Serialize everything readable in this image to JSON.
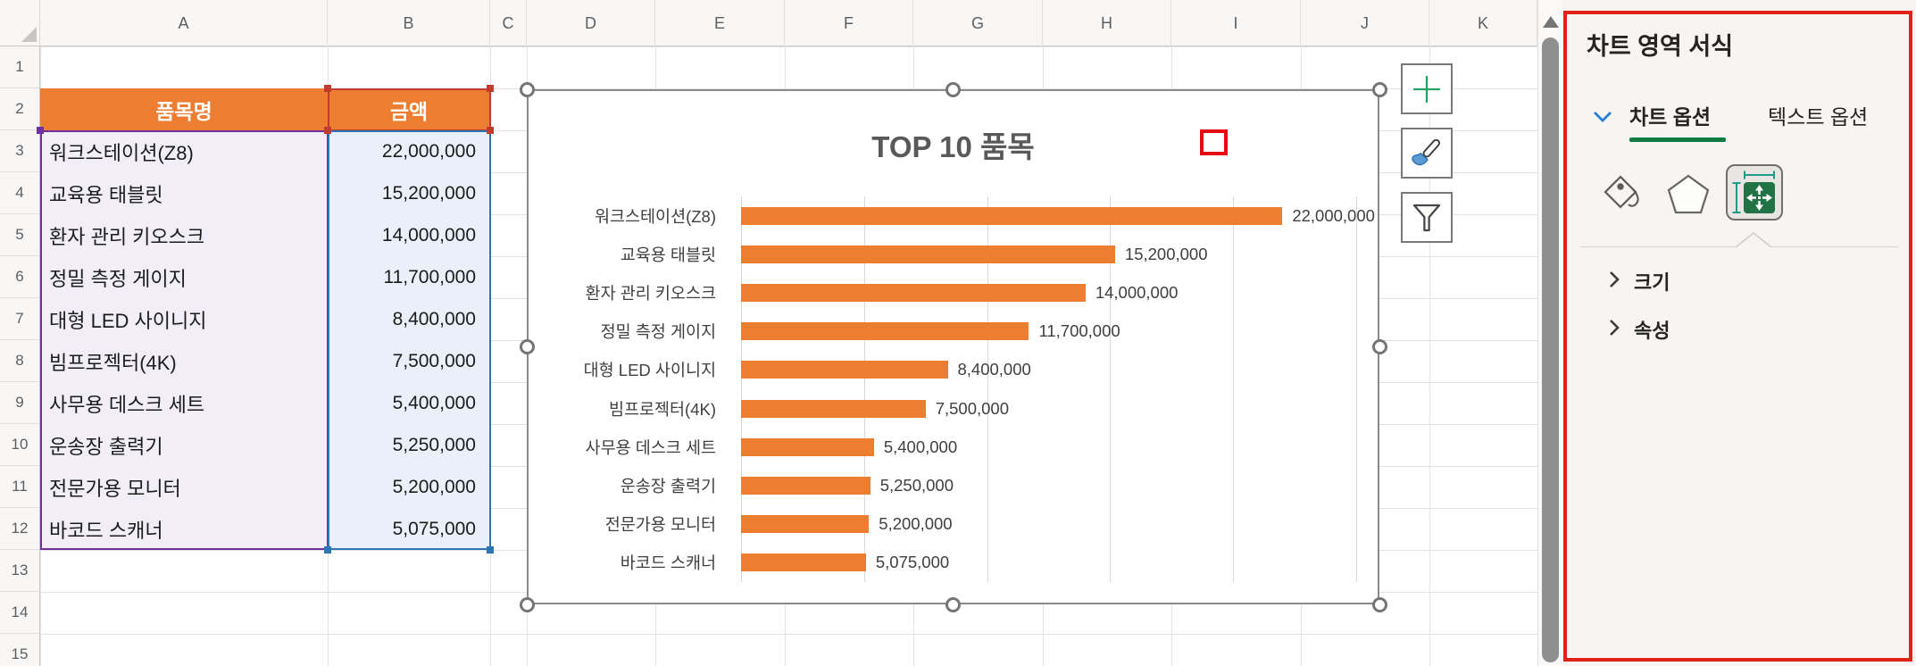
{
  "colors": {
    "accent_orange": "#ED7D31",
    "range_red": "#C23B31",
    "range_blue": "#2E75B6",
    "range_purple": "#7030A0",
    "annotation_red": "#E32119",
    "tab_underline_green": "#107C41",
    "size_icon_green": "#217346",
    "plus_icon_green": "#21A366",
    "brush_icon_blue": "#5B9BD5"
  },
  "spreadsheet": {
    "column_headers": [
      "A",
      "B",
      "C",
      "D",
      "E",
      "F",
      "G",
      "H",
      "I",
      "J",
      "K"
    ],
    "row_headers": [
      "1",
      "2",
      "3",
      "4",
      "5",
      "6",
      "7",
      "8",
      "9",
      "10",
      "11",
      "12",
      "13",
      "14",
      "15"
    ],
    "table": {
      "header": {
        "item": "품목명",
        "amount": "금액"
      },
      "rows": [
        {
          "name": "워크스테이션(Z8)",
          "amount": "22,000,000"
        },
        {
          "name": "교육용 태블릿",
          "amount": "15,200,000"
        },
        {
          "name": "환자 관리 키오스크",
          "amount": "14,000,000"
        },
        {
          "name": "정밀 측정 게이지",
          "amount": "11,700,000"
        },
        {
          "name": "대형 LED 사이니지",
          "amount": "8,400,000"
        },
        {
          "name": "빔프로젝터(4K)",
          "amount": "7,500,000"
        },
        {
          "name": "사무용 데스크 세트",
          "amount": "5,400,000"
        },
        {
          "name": "운송장 출력기",
          "amount": "5,250,000"
        },
        {
          "name": "전문가용 모니터",
          "amount": "5,200,000"
        },
        {
          "name": "바코드 스캐너",
          "amount": "5,075,000"
        }
      ]
    }
  },
  "chart_data": {
    "type": "bar",
    "orientation": "horizontal",
    "title": "TOP 10 품목",
    "categories": [
      "워크스테이션(Z8)",
      "교육용 태블릿",
      "환자 관리 키오스크",
      "정밀 측정 게이지",
      "대형 LED 사이니지",
      "빔프로젝터(4K)",
      "사무용 데스크 세트",
      "운송장 출력기",
      "전문가용 모니터",
      "바코드 스캐너"
    ],
    "values": [
      22000000,
      15200000,
      14000000,
      11700000,
      8400000,
      7500000,
      5400000,
      5250000,
      5200000,
      5075000
    ],
    "value_labels": [
      "22,000,000",
      "15,200,000",
      "14,000,000",
      "11,700,000",
      "8,400,000",
      "7,500,000",
      "5,400,000",
      "5,250,000",
      "5,200,000",
      "5,075,000"
    ],
    "series_color": "#ED7D31",
    "xlim": [
      0,
      25000000
    ],
    "gridline_interval": 5000000,
    "grid": "vertical gridlines only, no x-axis labels",
    "data_labels": "outside end",
    "legend": "none"
  },
  "chart_side_buttons": [
    {
      "label": "chart elements",
      "icon": "plus"
    },
    {
      "label": "chart styles",
      "icon": "brush"
    },
    {
      "label": "chart filters",
      "icon": "funnel"
    }
  ],
  "panel": {
    "title": "차트 영역 서식",
    "tabs": [
      {
        "label": "차트 옵션",
        "selected": true
      },
      {
        "label": "텍스트 옵션",
        "selected": false
      }
    ],
    "icon_tabs": [
      {
        "name": "fill-and-line",
        "selected": false
      },
      {
        "name": "effects",
        "selected": false
      },
      {
        "name": "size-and-properties",
        "selected": true
      }
    ],
    "sections": [
      {
        "label": "크기"
      },
      {
        "label": "속성"
      }
    ]
  }
}
